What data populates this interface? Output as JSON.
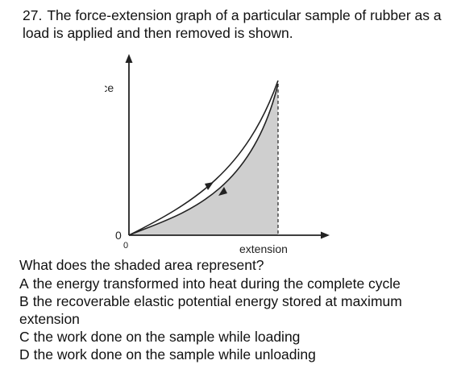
{
  "question": {
    "number": "27.",
    "text": "The force-extension graph of a particular sample of rubber as a load is applied and then removed is shown."
  },
  "graph": {
    "y_axis_label": "force",
    "x_axis_label": "extension",
    "origin_label_y": "0",
    "origin_label_x": "0",
    "colors": {
      "shaded_area": "#cfcfcf",
      "curve": "#222222",
      "axis": "#222222"
    }
  },
  "prompt": "What does the shaded area represent?",
  "options": [
    {
      "letter": "A",
      "text": "the energy transformed into heat during the complete cycle"
    },
    {
      "letter": "B",
      "text": "the recoverable elastic potential energy stored at maximum extension"
    },
    {
      "letter": "C",
      "text": "the work done on the sample while loading"
    },
    {
      "letter": "D",
      "text": "the work done on the sample while unloading"
    }
  ]
}
